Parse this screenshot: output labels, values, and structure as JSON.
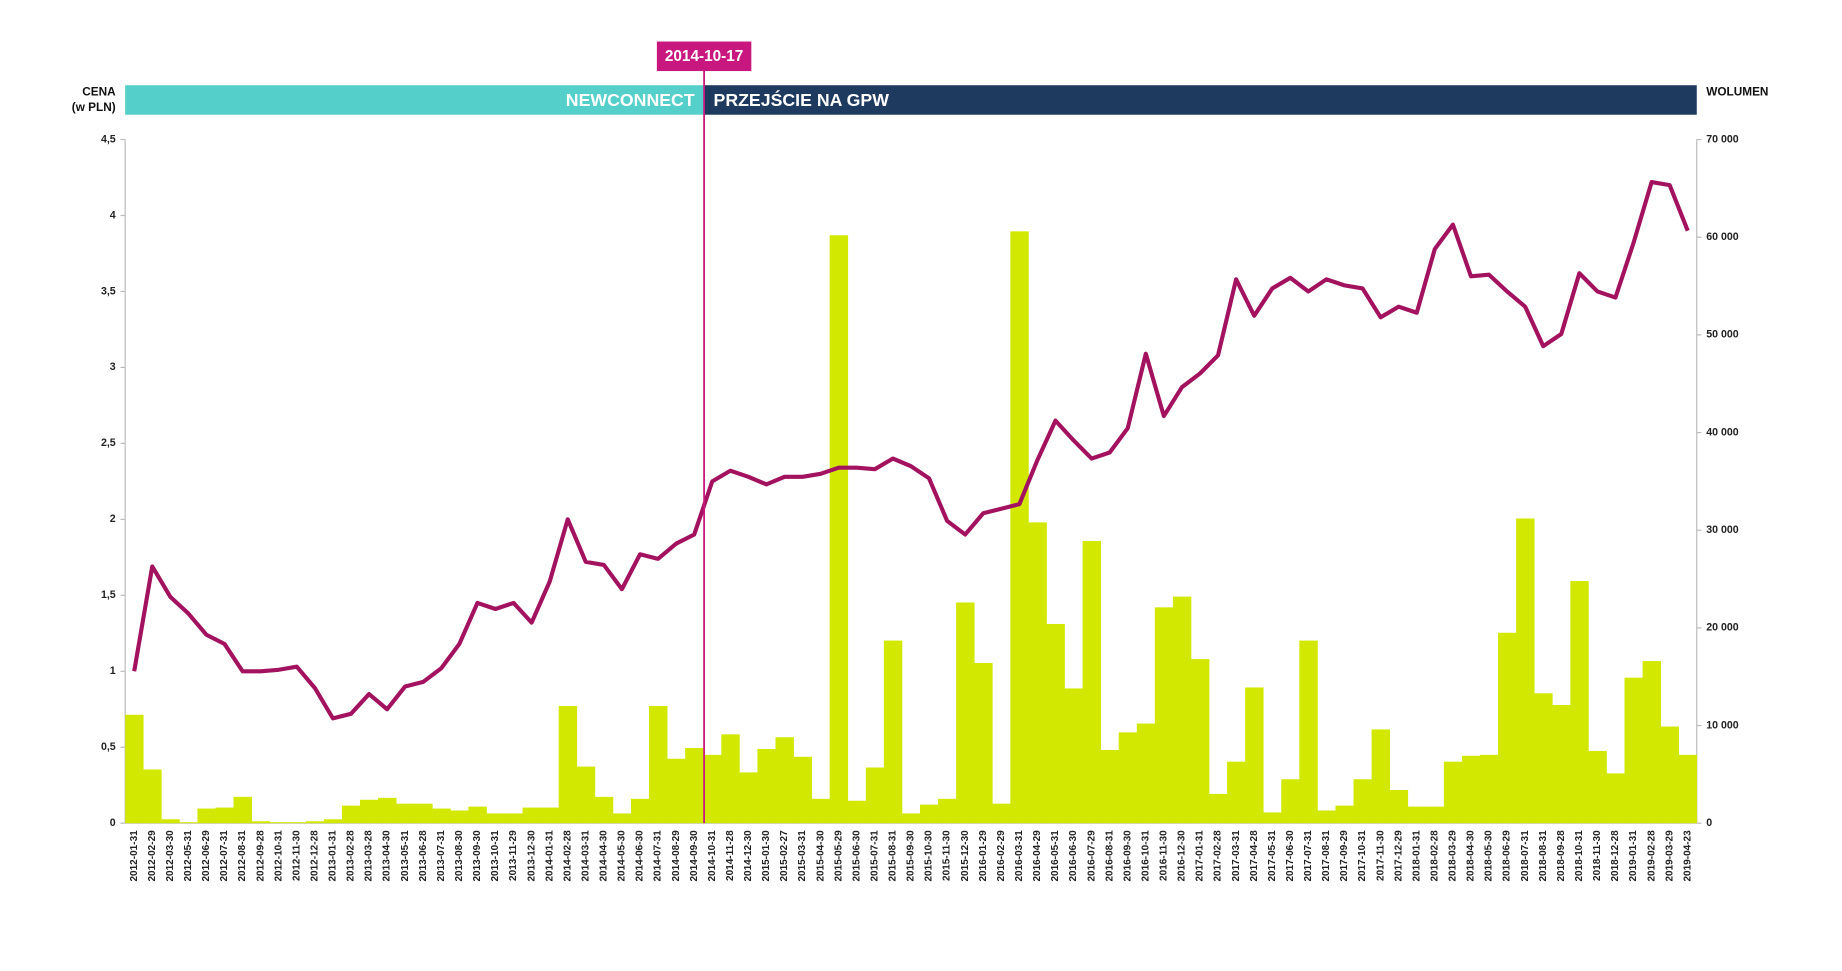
{
  "chart_data": {
    "type": "combo",
    "ylabel": [
      "CENA",
      "(w PLN)"
    ],
    "y2label": "WOLUMEN",
    "phases": [
      {
        "label": "NEWCONNECT",
        "color": "#55cfc9"
      },
      {
        "label": "PRZEJŚCIE NA GPW",
        "color": "#1f3a5f"
      }
    ],
    "marker": {
      "label": "2014-10-17",
      "color": "#c8177f"
    },
    "categories": [
      "2012-01-31",
      "2012-02-29",
      "2012-03-30",
      "2012-05-31",
      "2012-06-29",
      "2012-07-31",
      "2012-08-31",
      "2012-09-28",
      "2012-10-31",
      "2012-11-30",
      "2012-12-28",
      "2013-01-31",
      "2013-02-28",
      "2013-03-28",
      "2013-04-30",
      "2013-05-31",
      "2013-06-28",
      "2013-07-31",
      "2013-08-30",
      "2013-09-30",
      "2013-10-31",
      "2013-11-29",
      "2013-12-30",
      "2014-01-31",
      "2014-02-28",
      "2014-03-31",
      "2014-04-30",
      "2014-05-30",
      "2014-06-30",
      "2014-07-31",
      "2014-08-29",
      "2014-09-30",
      "2014-10-31",
      "2014-11-28",
      "2014-12-30",
      "2015-01-30",
      "2015-02-27",
      "2015-03-31",
      "2015-04-30",
      "2015-05-29",
      "2015-06-30",
      "2015-07-31",
      "2015-08-31",
      "2015-09-30",
      "2015-10-30",
      "2015-11-30",
      "2015-12-30",
      "2016-01-29",
      "2016-02-29",
      "2016-03-31",
      "2016-04-29",
      "2016-05-31",
      "2016-06-30",
      "2016-07-29",
      "2016-08-31",
      "2016-09-30",
      "2016-10-31",
      "2016-11-30",
      "2016-12-30",
      "2017-01-31",
      "2017-02-28",
      "2017-03-31",
      "2017-04-28",
      "2017-05-31",
      "2017-06-30",
      "2017-07-31",
      "2017-08-31",
      "2017-09-29",
      "2017-10-31",
      "2017-11-30",
      "2017-12-29",
      "2018-01-31",
      "2018-02-28",
      "2018-03-29",
      "2018-04-30",
      "2018-05-30",
      "2018-06-29",
      "2018-07-31",
      "2018-08-31",
      "2018-09-28",
      "2018-10-31",
      "2018-11-30",
      "2018-12-28",
      "2019-01-31",
      "2019-02-28",
      "2019-03-29",
      "2019-04-23"
    ],
    "series": [
      {
        "type": "bar",
        "axis": "y2",
        "color": "#d2e800",
        "values": [
          11100,
          5500,
          400,
          100,
          1500,
          1600,
          2700,
          200,
          100,
          100,
          200,
          400,
          1800,
          2400,
          2600,
          2000,
          2000,
          1500,
          1300,
          1700,
          1000,
          1000,
          1600,
          1600,
          12000,
          5800,
          2700,
          1000,
          2500,
          12000,
          6600,
          7700,
          7000,
          9100,
          5200,
          7600,
          8800,
          6800,
          2500,
          60200,
          2300,
          5700,
          18700,
          1000,
          1900,
          2500,
          22600,
          16400,
          2000,
          60600,
          30800,
          20400,
          13800,
          28900,
          7500,
          9300,
          10200,
          22100,
          23200,
          16800,
          3000,
          6300,
          13900,
          1100,
          4500,
          18700,
          1300,
          1800,
          4500,
          9600,
          3400,
          1700,
          1700,
          6300,
          6900,
          7000,
          19500,
          31200,
          13300,
          12100,
          24800,
          7400,
          5100,
          14900,
          16600,
          9900,
          7000
        ]
      },
      {
        "type": "line",
        "color": "#a3125f",
        "values": [
          1.0,
          1.69,
          1.49,
          1.38,
          1.24,
          1.18,
          1.0,
          1.0,
          1.01,
          1.03,
          0.89,
          0.69,
          0.72,
          0.85,
          0.75,
          0.9,
          0.93,
          1.02,
          1.18,
          1.45,
          1.41,
          1.45,
          1.32,
          1.59,
          2.0,
          1.72,
          1.7,
          1.54,
          1.77,
          1.74,
          1.84,
          1.9,
          2.25,
          2.32,
          2.28,
          2.23,
          2.28,
          2.28,
          2.3,
          2.34,
          2.34,
          2.33,
          2.4,
          2.35,
          2.27,
          1.99,
          1.9,
          2.04,
          2.07,
          2.1,
          2.39,
          2.65,
          2.52,
          2.4,
          2.44,
          2.6,
          3.09,
          2.68,
          2.87,
          2.96,
          3.08,
          3.58,
          3.34,
          3.52,
          3.59,
          3.5,
          3.58,
          3.54,
          3.52,
          3.33,
          3.4,
          3.36,
          3.78,
          3.94,
          3.6,
          3.61,
          3.5,
          3.4,
          3.14,
          3.22,
          3.62,
          3.5,
          3.46,
          3.82,
          4.22,
          4.2,
          3.9
        ]
      }
    ],
    "ylim": [
      0,
      4.5
    ],
    "yticks": [
      0,
      {
        "value": 0.5,
        "label": "0,5"
      },
      1,
      {
        "value": 1.5,
        "label": "1,5"
      },
      2,
      {
        "value": 2.5,
        "label": "2,5"
      },
      3,
      {
        "value": 3.5,
        "label": "3,5"
      },
      4,
      {
        "value": 4.5,
        "label": "4,5"
      }
    ],
    "y2lim": [
      0,
      70000
    ],
    "y2ticks": [
      0,
      {
        "value": 10000,
        "label": "10 000"
      },
      {
        "value": 20000,
        "label": "20 000"
      },
      {
        "value": 30000,
        "label": "30 000"
      },
      {
        "value": 40000,
        "label": "40 000"
      },
      {
        "value": 50000,
        "label": "50 000"
      },
      {
        "value": 60000,
        "label": "60 000"
      },
      {
        "value": 70000,
        "label": "70 000"
      }
    ],
    "grid": false
  }
}
